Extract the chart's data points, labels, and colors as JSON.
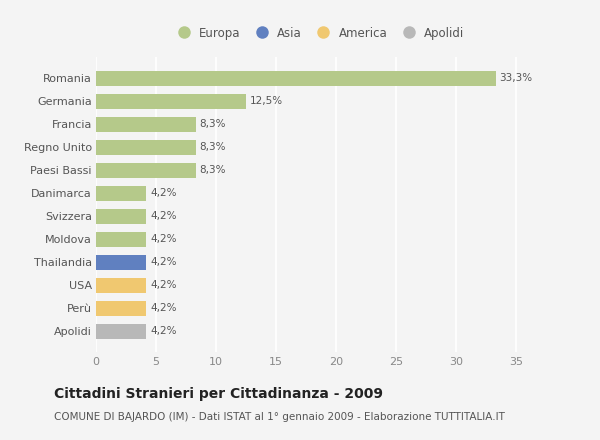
{
  "categories": [
    "Romania",
    "Germania",
    "Francia",
    "Regno Unito",
    "Paesi Bassi",
    "Danimarca",
    "Svizzera",
    "Moldova",
    "Thailandia",
    "USA",
    "Perù",
    "Apolidi"
  ],
  "values": [
    33.3,
    12.5,
    8.3,
    8.3,
    8.3,
    4.2,
    4.2,
    4.2,
    4.2,
    4.2,
    4.2,
    4.2
  ],
  "labels": [
    "33,3%",
    "12,5%",
    "8,3%",
    "8,3%",
    "8,3%",
    "4,2%",
    "4,2%",
    "4,2%",
    "4,2%",
    "4,2%",
    "4,2%",
    "4,2%"
  ],
  "colors": [
    "#b5c98a",
    "#b5c98a",
    "#b5c98a",
    "#b5c98a",
    "#b5c98a",
    "#b5c98a",
    "#b5c98a",
    "#b5c98a",
    "#6080c0",
    "#f0c870",
    "#f0c870",
    "#b8b8b8"
  ],
  "legend_labels": [
    "Europa",
    "Asia",
    "America",
    "Apolidi"
  ],
  "legend_colors": [
    "#b5c98a",
    "#6080c0",
    "#f0c870",
    "#b8b8b8"
  ],
  "title": "Cittadini Stranieri per Cittadinanza - 2009",
  "subtitle": "COMUNE DI BAJARDO (IM) - Dati ISTAT al 1° gennaio 2009 - Elaborazione TUTTITALIA.IT",
  "xlim": [
    0,
    37
  ],
  "xticks": [
    0,
    5,
    10,
    15,
    20,
    25,
    30,
    35
  ],
  "background_color": "#f4f4f4",
  "plot_bg_color": "#f4f4f4",
  "grid_color": "#ffffff",
  "bar_height": 0.65,
  "label_fontsize": 7.5,
  "title_fontsize": 10,
  "subtitle_fontsize": 7.5,
  "ytick_fontsize": 8,
  "xtick_fontsize": 8,
  "legend_fontsize": 8.5
}
